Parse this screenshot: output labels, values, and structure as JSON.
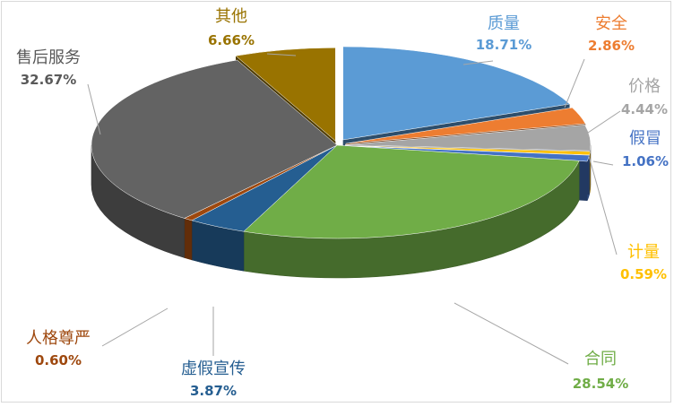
{
  "chart_data": {
    "type": "pie",
    "style": "3d-exploded-tilt",
    "title": "",
    "legend": "none",
    "slices": [
      {
        "name": "质量",
        "value": 18.71,
        "label": "18.71%",
        "color": "#5b9bd5"
      },
      {
        "name": "安全",
        "value": 2.86,
        "label": "2.86%",
        "color": "#ed7d31"
      },
      {
        "name": "价格",
        "value": 4.44,
        "label": "4.44%",
        "color": "#a5a5a5"
      },
      {
        "name": "计量",
        "value": 0.59,
        "label": "0.59%",
        "color": "#ffc000"
      },
      {
        "name": "假冒",
        "value": 1.06,
        "label": "1.06%",
        "color": "#4472c4"
      },
      {
        "name": "合同",
        "value": 28.54,
        "label": "28.54%",
        "color": "#70ad47"
      },
      {
        "name": "虚假宣传",
        "value": 3.87,
        "label": "3.87%",
        "color": "#255e91"
      },
      {
        "name": "人格尊严",
        "value": 0.6,
        "label": "0.60%",
        "color": "#9e480e"
      },
      {
        "name": "售后服务",
        "value": 32.67,
        "label": "32.67%",
        "color": "#636363"
      },
      {
        "name": "其他",
        "value": 6.66,
        "label": "6.66%",
        "color": "#997300"
      }
    ]
  }
}
